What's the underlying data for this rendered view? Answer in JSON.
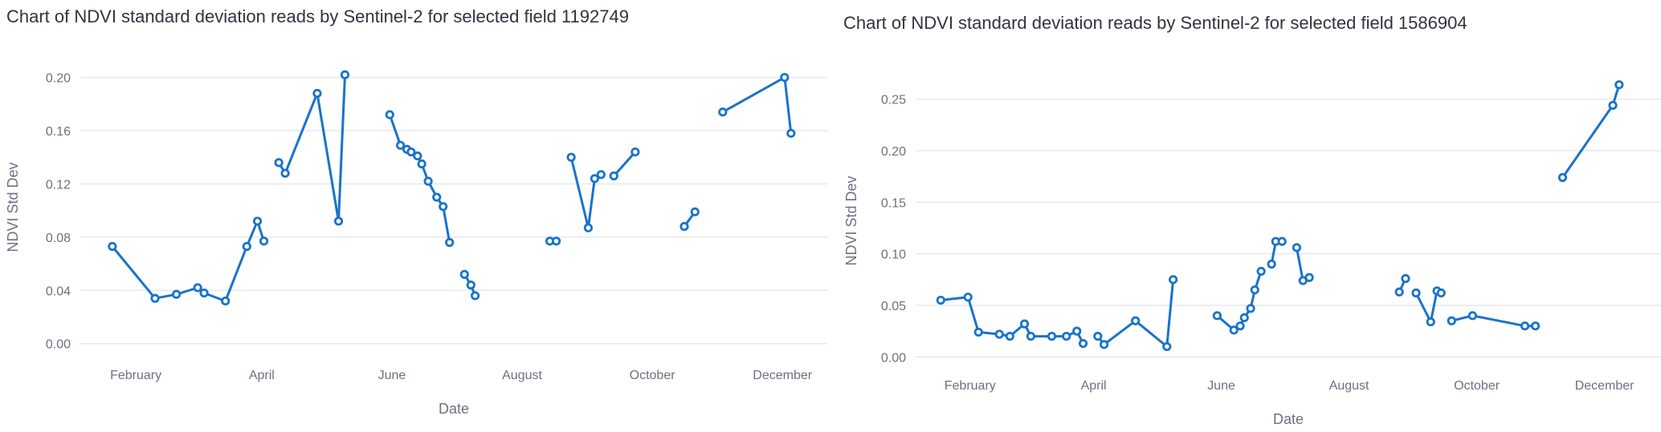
{
  "colors": {
    "series": "#1a73c9",
    "grid": "#e6e8ee",
    "text": "#6d7080",
    "title": "#31333f"
  },
  "chart_data": [
    {
      "type": "line",
      "title": "Chart of NDVI standard deviation reads by Sentinel-2 for selected field 1192749",
      "xlabel": "Date",
      "ylabel": "NDVI Std Dev",
      "x_ticks": [
        "February",
        "April",
        "June",
        "August",
        "October",
        "December"
      ],
      "x_tick_dates": [
        "2023-02-01",
        "2023-04-01",
        "2023-06-01",
        "2023-08-01",
        "2023-10-01",
        "2023-12-01"
      ],
      "xlim": [
        "2023-01-06",
        "2023-12-22"
      ],
      "y_ticks": [
        "0.00",
        "0.04",
        "0.08",
        "0.12",
        "0.16",
        "0.20"
      ],
      "y_tick_values": [
        0,
        0.04,
        0.08,
        0.12,
        0.16,
        0.2
      ],
      "ylim": [
        -0.005,
        0.21
      ],
      "grid": true,
      "series": [
        {
          "points": [
            {
              "x": "2023-01-21",
              "y": 0.073
            },
            {
              "x": "2023-02-10",
              "y": 0.034
            },
            {
              "x": "2023-02-20",
              "y": 0.037
            },
            {
              "x": "2023-03-02",
              "y": 0.042
            },
            {
              "x": "2023-03-05",
              "y": 0.038
            },
            {
              "x": "2023-03-15",
              "y": 0.032
            },
            {
              "x": "2023-03-25",
              "y": 0.073
            },
            {
              "x": "2023-03-30",
              "y": 0.092
            },
            {
              "x": "2023-04-02",
              "y": 0.077
            },
            {
              "x": "2023-04-02",
              "y": null
            },
            {
              "x": "2023-04-09",
              "y": 0.136
            },
            {
              "x": "2023-04-12",
              "y": 0.128
            },
            {
              "x": "2023-04-27",
              "y": 0.188
            },
            {
              "x": "2023-05-07",
              "y": 0.092
            },
            {
              "x": "2023-05-10",
              "y": 0.202
            },
            {
              "x": "2023-05-10",
              "y": null
            },
            {
              "x": "2023-05-31",
              "y": 0.172
            },
            {
              "x": "2023-06-05",
              "y": 0.149
            },
            {
              "x": "2023-06-08",
              "y": 0.146
            },
            {
              "x": "2023-06-10",
              "y": 0.144
            },
            {
              "x": "2023-06-13",
              "y": 0.141
            },
            {
              "x": "2023-06-15",
              "y": 0.135
            },
            {
              "x": "2023-06-18",
              "y": 0.122
            },
            {
              "x": "2023-06-22",
              "y": 0.11
            },
            {
              "x": "2023-06-25",
              "y": 0.103
            },
            {
              "x": "2023-06-28",
              "y": 0.076
            },
            {
              "x": "2023-06-28",
              "y": null
            },
            {
              "x": "2023-07-05",
              "y": 0.052
            },
            {
              "x": "2023-07-08",
              "y": 0.044
            },
            {
              "x": "2023-07-10",
              "y": 0.036
            },
            {
              "x": "2023-07-10",
              "y": null
            },
            {
              "x": "2023-08-14",
              "y": 0.077
            },
            {
              "x": "2023-08-17",
              "y": 0.077
            },
            {
              "x": "2023-08-17",
              "y": null
            },
            {
              "x": "2023-08-24",
              "y": 0.14
            },
            {
              "x": "2023-09-01",
              "y": 0.087
            },
            {
              "x": "2023-09-04",
              "y": 0.124
            },
            {
              "x": "2023-09-07",
              "y": 0.127
            },
            {
              "x": "2023-09-07",
              "y": null
            },
            {
              "x": "2023-09-13",
              "y": 0.126
            },
            {
              "x": "2023-09-23",
              "y": 0.144
            },
            {
              "x": "2023-09-23",
              "y": null
            },
            {
              "x": "2023-10-16",
              "y": 0.088
            },
            {
              "x": "2023-10-21",
              "y": 0.099
            },
            {
              "x": "2023-10-21",
              "y": null
            },
            {
              "x": "2023-11-03",
              "y": 0.174
            },
            {
              "x": "2023-12-02",
              "y": 0.2
            },
            {
              "x": "2023-12-05",
              "y": 0.158
            }
          ]
        }
      ]
    },
    {
      "type": "line",
      "title": "Chart of NDVI standard deviation reads by Sentinel-2 for selected field 1586904",
      "xlabel": "Date",
      "ylabel": "NDVI Std Dev",
      "x_ticks": [
        "February",
        "April",
        "June",
        "August",
        "October",
        "December"
      ],
      "x_tick_dates": [
        "2023-02-01",
        "2023-04-01",
        "2023-06-01",
        "2023-08-01",
        "2023-10-01",
        "2023-12-01"
      ],
      "xlim": [
        "2023-01-06",
        "2023-12-28"
      ],
      "y_ticks": [
        "0.00",
        "0.05",
        "0.10",
        "0.15",
        "0.20",
        "0.25"
      ],
      "y_tick_values": [
        0,
        0.05,
        0.1,
        0.15,
        0.2,
        0.25
      ],
      "ylim": [
        -0.006,
        0.27
      ],
      "grid": true,
      "series": [
        {
          "points": [
            {
              "x": "2023-01-18",
              "y": 0.055
            },
            {
              "x": "2023-01-31",
              "y": 0.058
            },
            {
              "x": "2023-02-05",
              "y": 0.024
            },
            {
              "x": "2023-02-15",
              "y": 0.022
            },
            {
              "x": "2023-02-20",
              "y": 0.02
            },
            {
              "x": "2023-02-27",
              "y": 0.032
            },
            {
              "x": "2023-03-02",
              "y": 0.02
            },
            {
              "x": "2023-03-12",
              "y": 0.02
            },
            {
              "x": "2023-03-19",
              "y": 0.02
            },
            {
              "x": "2023-03-24",
              "y": 0.025
            },
            {
              "x": "2023-03-27",
              "y": 0.013
            },
            {
              "x": "2023-03-27",
              "y": null
            },
            {
              "x": "2023-04-03",
              "y": 0.02
            },
            {
              "x": "2023-04-06",
              "y": 0.012
            },
            {
              "x": "2023-04-21",
              "y": 0.035
            },
            {
              "x": "2023-05-06",
              "y": 0.01
            },
            {
              "x": "2023-05-09",
              "y": 0.075
            },
            {
              "x": "2023-05-09",
              "y": null
            },
            {
              "x": "2023-05-30",
              "y": 0.04
            },
            {
              "x": "2023-06-07",
              "y": 0.026
            },
            {
              "x": "2023-06-10",
              "y": 0.03
            },
            {
              "x": "2023-06-12",
              "y": 0.038
            },
            {
              "x": "2023-06-15",
              "y": 0.047
            },
            {
              "x": "2023-06-17",
              "y": 0.065
            },
            {
              "x": "2023-06-20",
              "y": 0.083
            },
            {
              "x": "2023-06-20",
              "y": null
            },
            {
              "x": "2023-06-25",
              "y": 0.09
            },
            {
              "x": "2023-06-27",
              "y": 0.112
            },
            {
              "x": "2023-06-30",
              "y": 0.112
            },
            {
              "x": "2023-06-30",
              "y": null
            },
            {
              "x": "2023-07-07",
              "y": 0.106
            },
            {
              "x": "2023-07-10",
              "y": 0.074
            },
            {
              "x": "2023-07-13",
              "y": 0.077
            },
            {
              "x": "2023-07-13",
              "y": null
            },
            {
              "x": "2023-08-25",
              "y": 0.063
            },
            {
              "x": "2023-08-28",
              "y": 0.076
            },
            {
              "x": "2023-08-28",
              "y": null
            },
            {
              "x": "2023-09-02",
              "y": 0.062
            },
            {
              "x": "2023-09-09",
              "y": 0.034
            },
            {
              "x": "2023-09-12",
              "y": 0.064
            },
            {
              "x": "2023-09-14",
              "y": 0.062
            },
            {
              "x": "2023-09-14",
              "y": null
            },
            {
              "x": "2023-09-19",
              "y": 0.035
            },
            {
              "x": "2023-09-29",
              "y": 0.04
            },
            {
              "x": "2023-10-24",
              "y": 0.03
            },
            {
              "x": "2023-10-29",
              "y": 0.03
            },
            {
              "x": "2023-10-29",
              "y": null
            },
            {
              "x": "2023-11-11",
              "y": 0.174
            },
            {
              "x": "2023-12-05",
              "y": 0.244
            },
            {
              "x": "2023-12-08",
              "y": 0.264
            }
          ]
        }
      ]
    }
  ]
}
